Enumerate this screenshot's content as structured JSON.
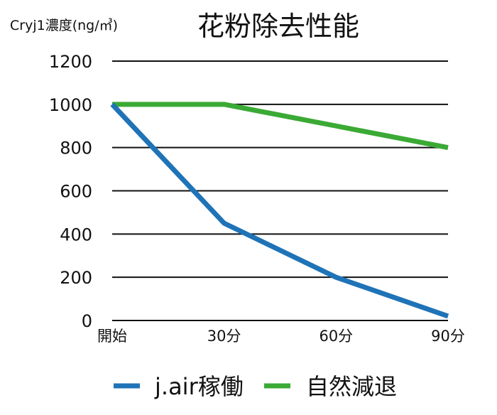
{
  "chart_data": {
    "type": "line",
    "title": "花粉除去性能",
    "ylabel": "Cryj1濃度(ng/㎥)",
    "xlabel": "",
    "categories": [
      "開始",
      "30分",
      "60分",
      "90分"
    ],
    "ylim": [
      0,
      1200
    ],
    "yticks": [
      0,
      200,
      400,
      600,
      800,
      1000,
      1200
    ],
    "grid": true,
    "legend_position": "bottom",
    "series": [
      {
        "name": "j.air稼働",
        "color": "#1f73b7",
        "values": [
          1000,
          450,
          200,
          20
        ]
      },
      {
        "name": "自然減退",
        "color": "#3aaa35",
        "values": [
          1000,
          1000,
          900,
          800
        ]
      }
    ]
  }
}
